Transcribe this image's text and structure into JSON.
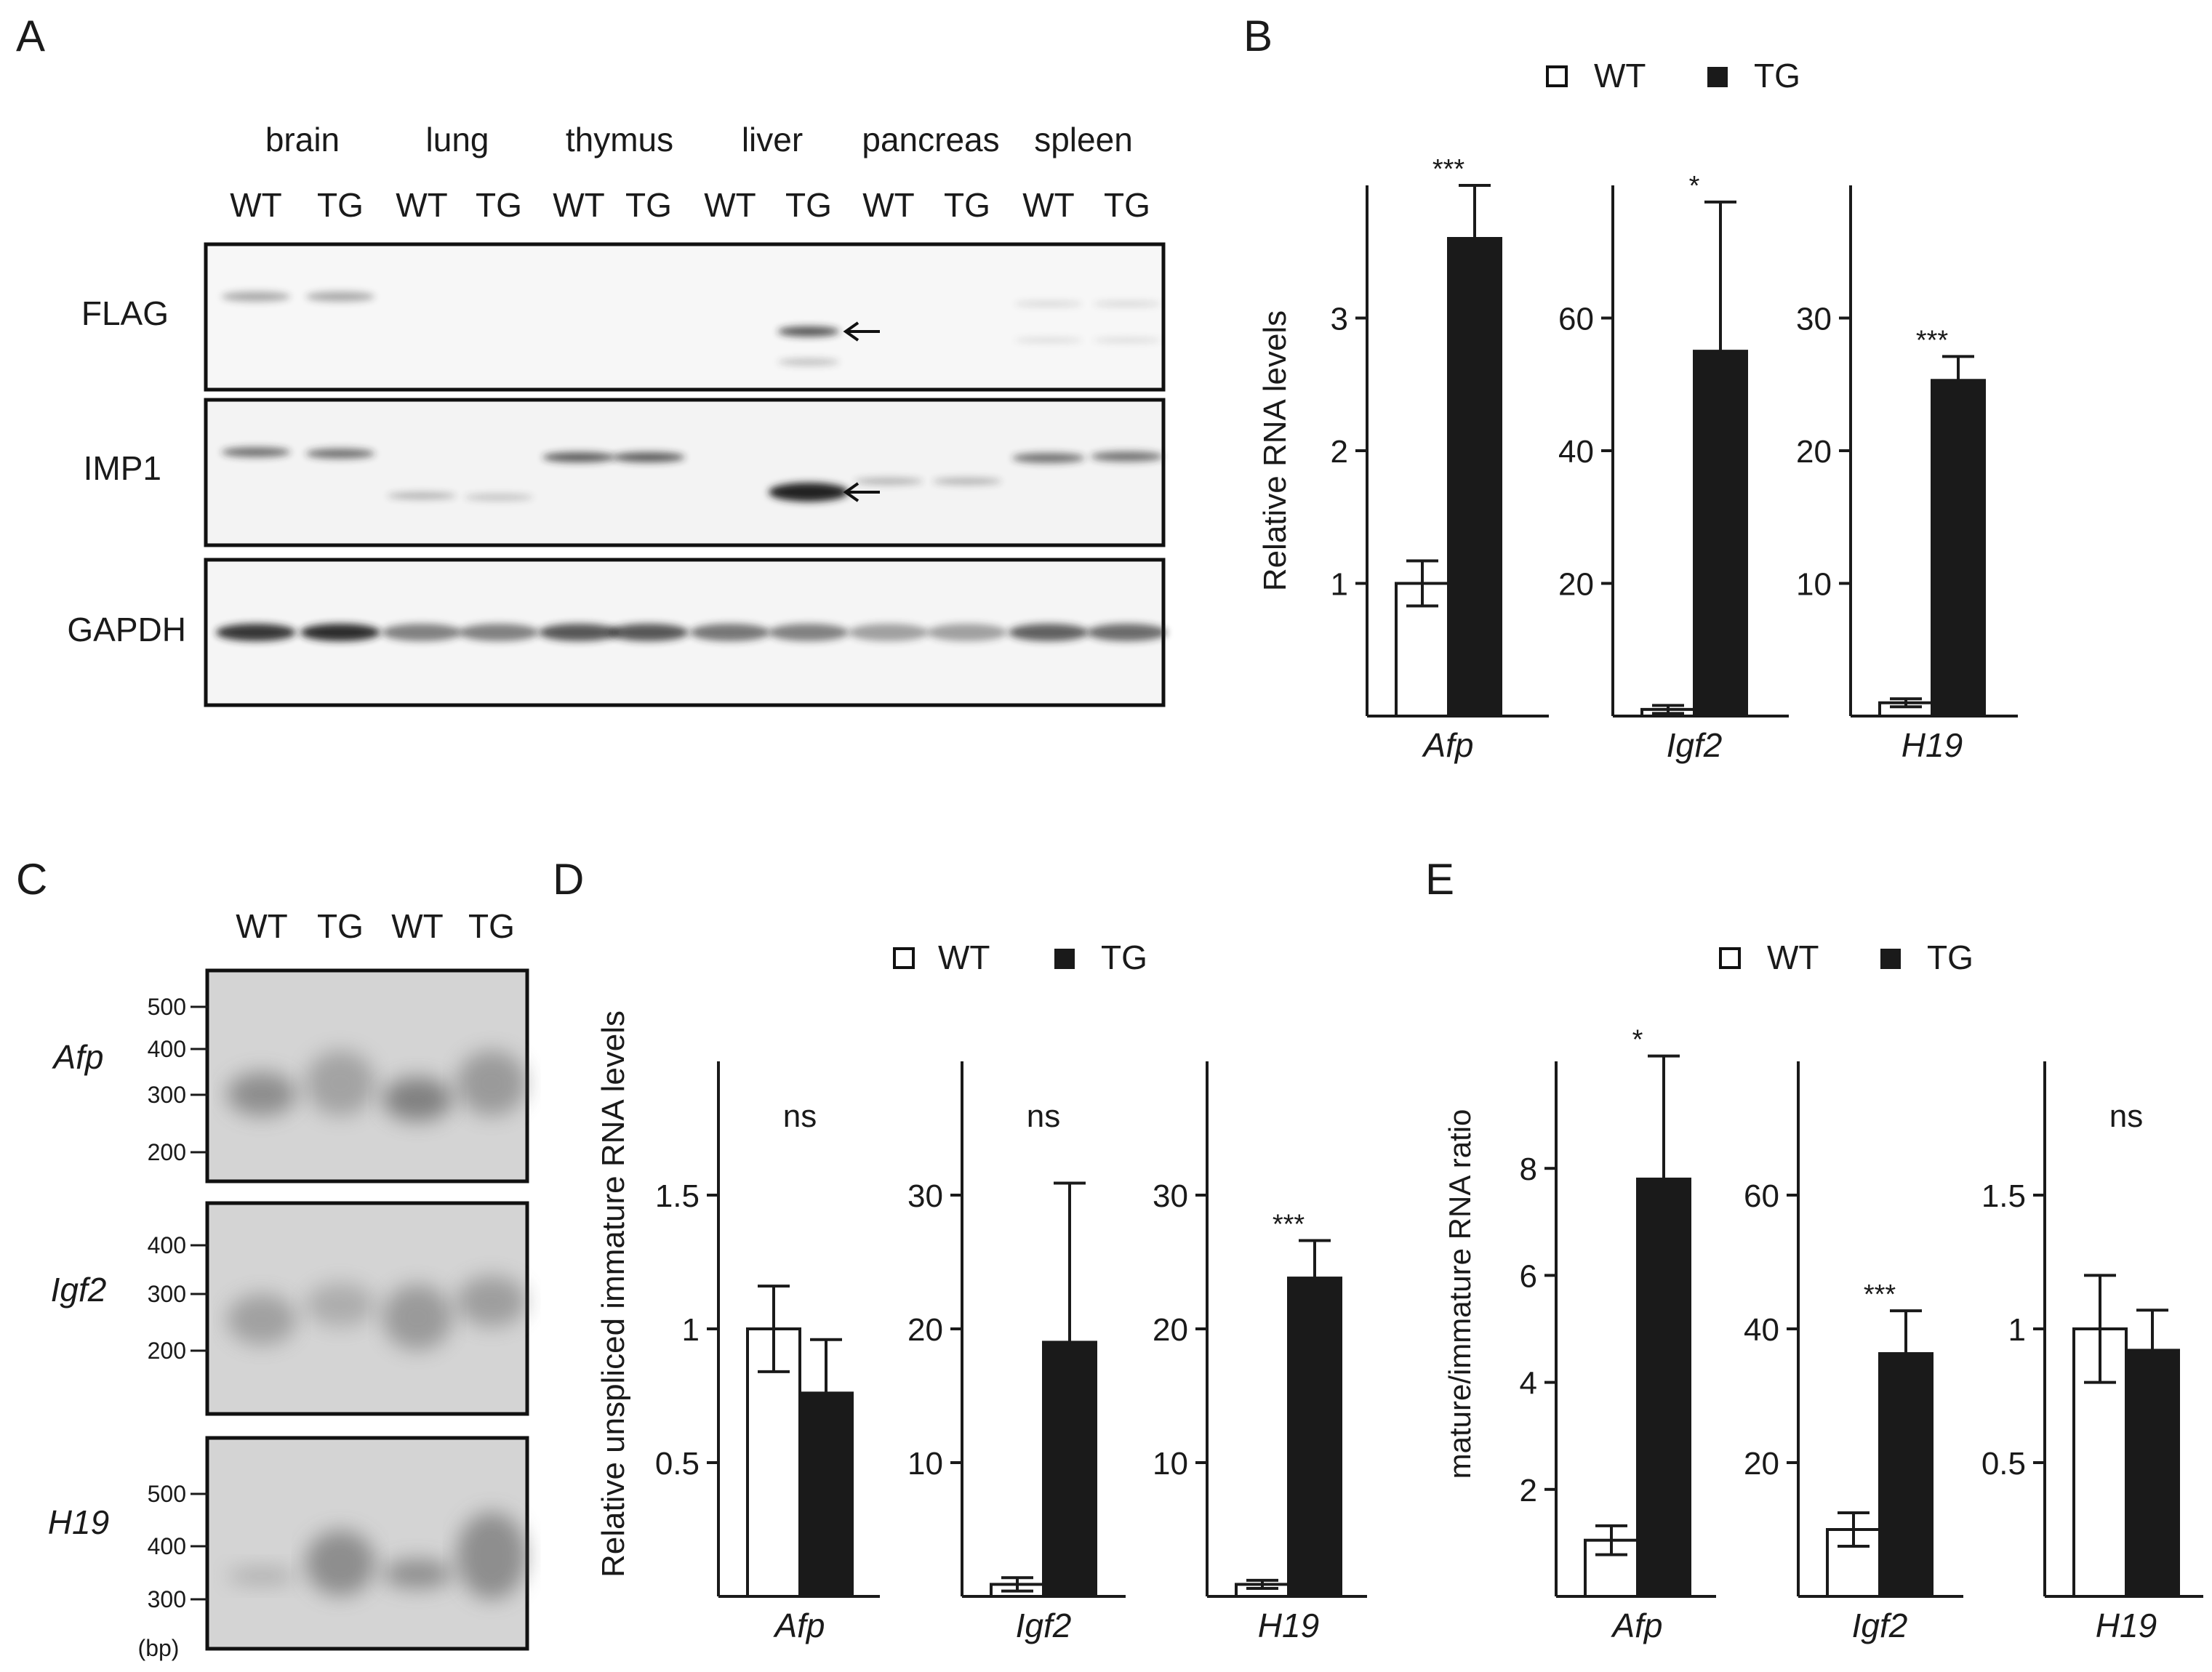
{
  "panels": {
    "A": {
      "letter": "A",
      "tissues": [
        "brain",
        "lung",
        "thymus",
        "liver",
        "pancreas",
        "spleen"
      ],
      "lane_labels": [
        "WT",
        "TG",
        "WT",
        "TG",
        "WT",
        "TG",
        "WT",
        "TG",
        "WT",
        "TG",
        "WT",
        "TG"
      ],
      "blot_labels": [
        "FLAG",
        "IMP1",
        "GAPDH"
      ]
    },
    "B": {
      "letter": "B",
      "legend": [
        "WT",
        "TG"
      ],
      "ylabel": "Relative RNA levels"
    },
    "C": {
      "letter": "C",
      "lane_labels": [
        "WT",
        "TG",
        "WT",
        "TG"
      ],
      "gels": [
        {
          "gene": "Afp",
          "markers": [
            "500",
            "400",
            "300",
            "200"
          ]
        },
        {
          "gene": "Igf2",
          "markers": [
            "400",
            "300",
            "200"
          ]
        },
        {
          "gene": "H19",
          "markers": [
            "500",
            "400",
            "300"
          ]
        }
      ],
      "unit": "(bp)"
    },
    "D": {
      "letter": "D",
      "legend": [
        "WT",
        "TG"
      ],
      "ylabel": "Relative unspliced immature RNA levels"
    },
    "E": {
      "letter": "E",
      "legend": [
        "WT",
        "TG"
      ],
      "ylabel": "mature/immature RNA ratio"
    }
  },
  "chart_data": [
    {
      "type": "bar",
      "panel": "B",
      "category": "Afp",
      "ylim": [
        0,
        4
      ],
      "yticks": [
        1,
        2,
        3
      ],
      "series": [
        {
          "name": "WT",
          "value": 1.0,
          "error": 0.17
        },
        {
          "name": "TG",
          "value": 3.6,
          "error": 0.4
        }
      ],
      "annotation": "***"
    },
    {
      "type": "bar",
      "panel": "B",
      "category": "Igf2",
      "ylim": [
        0,
        80
      ],
      "yticks": [
        20,
        40,
        60
      ],
      "series": [
        {
          "name": "WT",
          "value": 1.0,
          "error": 0.6
        },
        {
          "name": "TG",
          "value": 55,
          "error": 22.5
        }
      ],
      "annotation": "*"
    },
    {
      "type": "bar",
      "panel": "B",
      "category": "H19",
      "ylim": [
        0,
        40
      ],
      "yticks": [
        10,
        20,
        30
      ],
      "series": [
        {
          "name": "WT",
          "value": 1.0,
          "error": 0.3
        },
        {
          "name": "TG",
          "value": 25.3,
          "error": 1.8
        }
      ],
      "annotation": "***"
    },
    {
      "type": "bar",
      "panel": "D",
      "category": "Afp",
      "ylim": [
        0,
        2
      ],
      "yticks": [
        0.5,
        1,
        1.5
      ],
      "series": [
        {
          "name": "WT",
          "value": 1.0,
          "error": 0.16
        },
        {
          "name": "TG",
          "value": 0.76,
          "error": 0.2
        }
      ],
      "annotation": "ns"
    },
    {
      "type": "bar",
      "panel": "D",
      "category": "Igf2",
      "ylim": [
        0,
        40
      ],
      "yticks": [
        10,
        20,
        30
      ],
      "series": [
        {
          "name": "WT",
          "value": 0.9,
          "error": 0.5
        },
        {
          "name": "TG",
          "value": 19,
          "error": 11.9
        }
      ],
      "annotation": "ns"
    },
    {
      "type": "bar",
      "panel": "D",
      "category": "H19",
      "ylim": [
        0,
        40
      ],
      "yticks": [
        10,
        20,
        30
      ],
      "series": [
        {
          "name": "WT",
          "value": 0.9,
          "error": 0.3
        },
        {
          "name": "TG",
          "value": 23.8,
          "error": 2.8
        }
      ],
      "annotation": "***"
    },
    {
      "type": "bar",
      "panel": "E",
      "category": "Afp",
      "ylim": [
        0,
        10
      ],
      "yticks": [
        2,
        4,
        6,
        8
      ],
      "series": [
        {
          "name": "WT",
          "value": 1.05,
          "error": 0.27
        },
        {
          "name": "TG",
          "value": 7.8,
          "error": 2.3
        }
      ],
      "annotation": "*"
    },
    {
      "type": "bar",
      "panel": "E",
      "category": "Igf2",
      "ylim": [
        0,
        80
      ],
      "yticks": [
        20,
        40,
        60
      ],
      "series": [
        {
          "name": "WT",
          "value": 10,
          "error": 2.5
        },
        {
          "name": "TG",
          "value": 36.3,
          "error": 6.4
        }
      ],
      "annotation": "***"
    },
    {
      "type": "bar",
      "panel": "E",
      "category": "H19",
      "ylim": [
        0,
        2
      ],
      "yticks": [
        0.5,
        1,
        1.5
      ],
      "series": [
        {
          "name": "WT",
          "value": 1.0,
          "error": 0.2
        },
        {
          "name": "TG",
          "value": 0.92,
          "error": 0.15
        }
      ],
      "annotation": "ns"
    }
  ],
  "colors": {
    "wt_fill": "#ffffff",
    "tg_fill": "#1a1a1a",
    "ink": "#1a1a1a",
    "gel_bg": "#d4d4d4"
  }
}
